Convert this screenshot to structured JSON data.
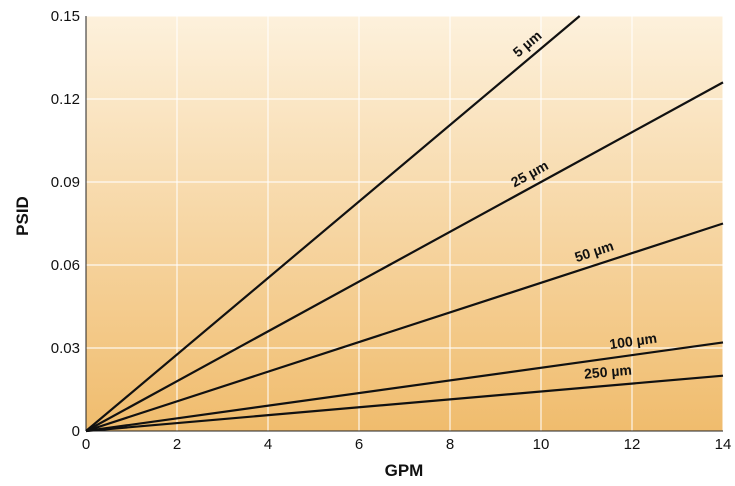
{
  "chart_data": {
    "type": "line",
    "title": "",
    "xlabel": "GPM",
    "ylabel": "PSID",
    "xlim": [
      0,
      14
    ],
    "ylim": [
      0,
      0.15
    ],
    "x_ticks": [
      0,
      2,
      4,
      6,
      8,
      10,
      12,
      14
    ],
    "x_tick_labels": [
      "0",
      "2",
      "4",
      "6",
      "8",
      "10",
      "12",
      "14"
    ],
    "y_ticks": [
      0,
      0.03,
      0.06,
      0.09,
      0.12,
      0.15
    ],
    "y_tick_labels": [
      "0",
      "0.03",
      "0.06",
      "0.09",
      "0.12",
      "0.15"
    ],
    "grid": true,
    "background_gradient": [
      "#fdf1dc",
      "#f0bc6d"
    ],
    "line_color": "#111111",
    "series": [
      {
        "name": "5 µm",
        "x": [
          0,
          10.85
        ],
        "y": [
          0,
          0.15
        ]
      },
      {
        "name": "25 µm",
        "x": [
          0,
          14
        ],
        "y": [
          0,
          0.126
        ]
      },
      {
        "name": "50 µm",
        "x": [
          0,
          14
        ],
        "y": [
          0,
          0.075
        ]
      },
      {
        "name": "100 µm",
        "x": [
          0,
          14
        ],
        "y": [
          0,
          0.032
        ]
      },
      {
        "name": "250 µm",
        "x": [
          0,
          14
        ],
        "y": [
          0,
          0.02
        ]
      }
    ]
  }
}
